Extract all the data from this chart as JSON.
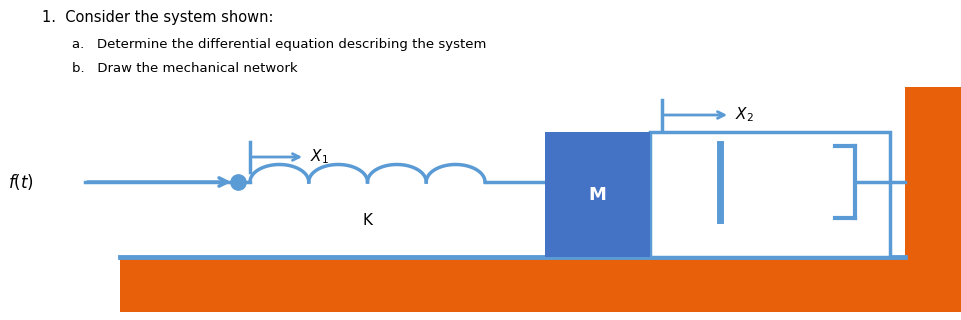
{
  "bg_color": "#ffffff",
  "orange_color": "#E8610A",
  "blue_color": "#5B9BD5",
  "dark_blue": "#4472C4",
  "text_color": "#000000",
  "title": "1.  Consider the system shown:",
  "sub_a": "a.   Determine the differential equation describing the system",
  "sub_b": "b.   Draw the mechanical network",
  "label_x1": "$X_1$",
  "label_x2": "$X_2$",
  "label_ft": "$f(t)$",
  "label_K": "K",
  "label_M": "M",
  "fig_w": 9.62,
  "fig_h": 3.2,
  "xlim": [
    0,
    9.62
  ],
  "ylim": [
    0,
    3.2
  ]
}
